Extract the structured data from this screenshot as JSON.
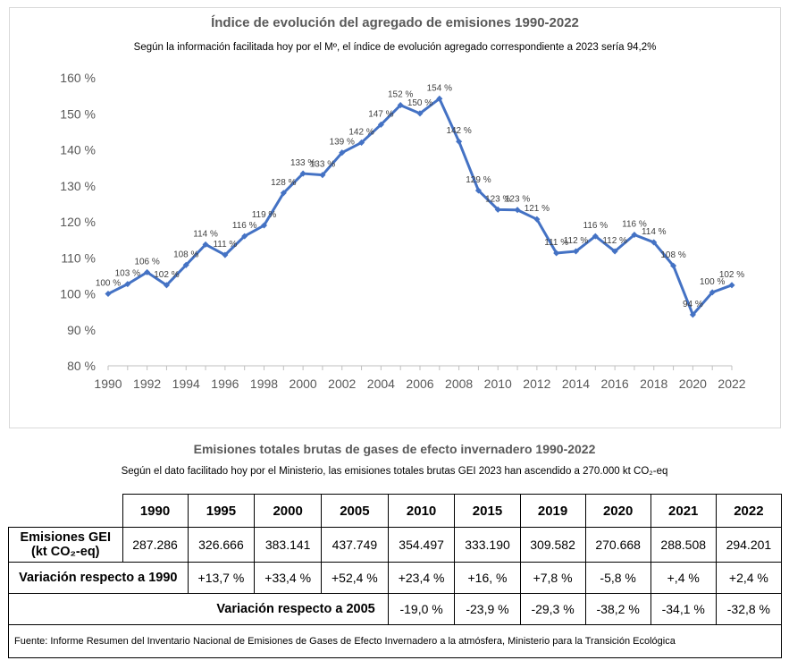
{
  "chart_data": {
    "type": "line",
    "title": "Índice de evolución del agregado de emisiones 1990-2022",
    "subtitle": "Según la información facilitada hoy por el Mº, el índice de evolución agregado correspondiente a 2023 sería 94,2%",
    "x": [
      1990,
      1991,
      1992,
      1993,
      1994,
      1995,
      1996,
      1997,
      1998,
      1999,
      2000,
      2001,
      2002,
      2003,
      2004,
      2005,
      2006,
      2007,
      2008,
      2009,
      2010,
      2011,
      2012,
      2013,
      2014,
      2015,
      2016,
      2017,
      2018,
      2019,
      2020,
      2021,
      2022
    ],
    "values": [
      100,
      102.7,
      106,
      102.4,
      108,
      113.7,
      110.8,
      116,
      119,
      128,
      133.4,
      133,
      139.2,
      142,
      147,
      152.4,
      150.1,
      154.2,
      142.3,
      128.7,
      123.4,
      123.3,
      120.7,
      111.3,
      111.8,
      116,
      111.8,
      116.4,
      114.3,
      107.8,
      94.2,
      100.4,
      102.4
    ],
    "labels": [
      "100 %",
      "103 %",
      "106 %",
      "102 %",
      "108 %",
      "114 %",
      "111 %",
      "116 %",
      "119 %",
      "128 %",
      "133 %",
      "133 %",
      "139 %",
      "142 %",
      "147 %",
      "152 %",
      "150 %",
      "154 %",
      "142 %",
      "129 %",
      "123 %",
      "123 %",
      "121 %",
      "111 %",
      "112 %",
      "116 %",
      "112 %",
      "116 %",
      "114 %",
      "108 %",
      "94 %",
      "100 %",
      "102 %"
    ],
    "xticks": [
      "1990",
      "1992",
      "1994",
      "1996",
      "1998",
      "2000",
      "2002",
      "2004",
      "2006",
      "2008",
      "2010",
      "2012",
      "2014",
      "2016",
      "2018",
      "2020",
      "2022"
    ],
    "yticks": [
      "80 %",
      "90 %",
      "100 %",
      "110 %",
      "120 %",
      "130 %",
      "140 %",
      "150 %",
      "160 %"
    ],
    "ylim": [
      80,
      160
    ],
    "xlim": [
      1990,
      2022
    ],
    "grid": false,
    "line_color": "#4472c4"
  },
  "table": {
    "title": "Emisiones totales brutas de gases de efecto invernadero 1990-2022",
    "subtitle": "Según el dato facilitado hoy por el Ministerio, las emisiones totales brutas GEI 2023 han ascendido a 270.000 kt CO₂-eq",
    "years": [
      "1990",
      "1995",
      "2000",
      "2005",
      "2010",
      "2015",
      "2019",
      "2020",
      "2021",
      "2022"
    ],
    "row1_label_a": "Emisiones GEI",
    "row1_label_b": "(kt CO₂-eq)",
    "emissions": [
      "287.286",
      "326.666",
      "383.141",
      "437.749",
      "354.497",
      "333.190",
      "309.582",
      "270.668",
      "288.508",
      "294.201"
    ],
    "row2_label": "Variación respecto a 1990",
    "var1990": [
      "+13,7 %",
      "+33,4 %",
      "+52,4 %",
      "+23,4 %",
      "+16, %",
      "+7,8 %",
      "-5,8 %",
      "+,4 %",
      "+2,4 %"
    ],
    "row3_label": "Variación respecto a 2005",
    "var2005": [
      "-19,0 %",
      "-23,9 %",
      "-29,3 %",
      "-38,2 %",
      "-34,1 %",
      "-32,8 %"
    ],
    "source": "Fuente: Informe Resumen del Inventario Nacional de Emisiones de Gases de Efecto Invernadero a la atmósfera, Ministerio para la Transición Ecológica"
  }
}
